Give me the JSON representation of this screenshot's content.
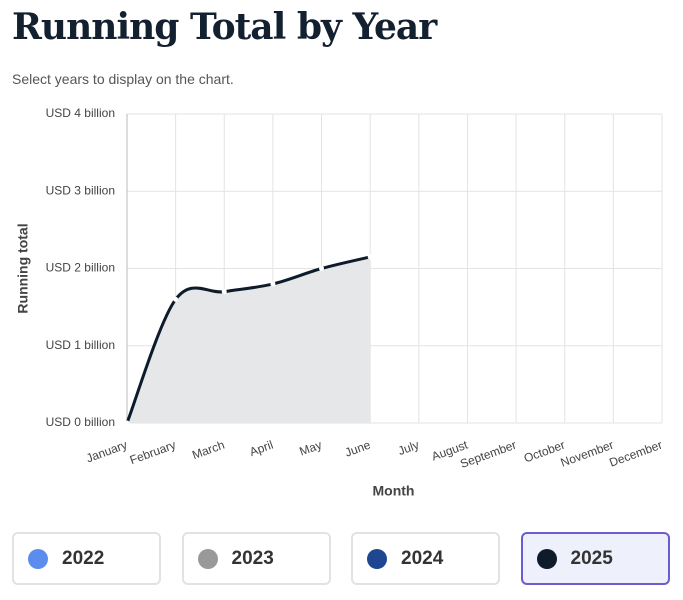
{
  "chart_data": {
    "type": "area",
    "title": "Running Total by Year",
    "subtitle": "Select years to display on the chart.",
    "x_label": "Month",
    "y_label": "Running total",
    "categories": [
      "January",
      "February",
      "March",
      "April",
      "May",
      "June",
      "July",
      "August",
      "September",
      "October",
      "November",
      "December"
    ],
    "series": [
      {
        "name": "2025",
        "color": "#0d1b2a",
        "fill": "#e5e7e9",
        "values": [
          0,
          1.6,
          1.7,
          1.8,
          2.0,
          2.15,
          null,
          null,
          null,
          null,
          null,
          null
        ]
      }
    ],
    "ylim": [
      0,
      4
    ],
    "yticks": [
      {
        "value": 0,
        "label": "USD 0 billion"
      },
      {
        "value": 1,
        "label": "USD 1 billion"
      },
      {
        "value": 2,
        "label": "USD 2 billion"
      },
      {
        "value": 3,
        "label": "USD 3 billion"
      },
      {
        "value": 4,
        "label": "USD 4 billion"
      }
    ],
    "grid": true
  },
  "year_selector": {
    "options": [
      {
        "label": "2022",
        "color": "#5b8def"
      },
      {
        "label": "2023",
        "color": "#999999"
      },
      {
        "label": "2024",
        "color": "#1f4690"
      },
      {
        "label": "2025",
        "color": "#0d1b2a"
      }
    ],
    "selected": 3
  }
}
